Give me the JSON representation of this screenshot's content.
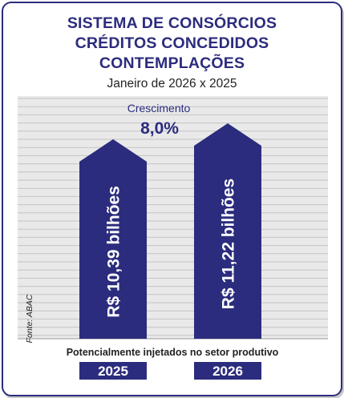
{
  "chart_data": {
    "type": "bar",
    "title_lines": [
      "SISTEMA DE CONSÓRCIOS",
      "CRÉDITOS CONCEDIDOS",
      "CONTEMPLAÇÕES"
    ],
    "subtitle": "Janeiro de 2026 x 2025",
    "categories": [
      "2025",
      "2026"
    ],
    "values": [
      10.39,
      11.22
    ],
    "value_labels": [
      "R$ 10,39 bilhões",
      "R$ 11,22 bilhões"
    ],
    "growth_label": "Crescimento",
    "growth_value": "8,0%",
    "footnote": "Potencialmente injetados no setor produtivo",
    "source": "Fonte: ABAC",
    "grid": true,
    "colors": {
      "bar": "#2b2c7d",
      "grid_background": "#e9e9ea",
      "grid_line": "#c4c4c6"
    }
  }
}
